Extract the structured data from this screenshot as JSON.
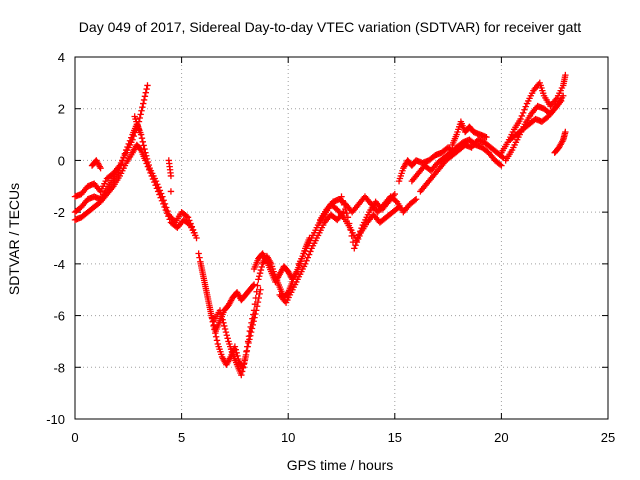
{
  "chart_data": {
    "type": "scatter",
    "title": "Day 049 of 2017, Sidereal Day-to-day VTEC variation (SDTVAR) for receiver gatt",
    "xlabel": "GPS time / hours",
    "ylabel": "SDTVAR / TECUs",
    "xlim": [
      0,
      25
    ],
    "ylim": [
      -10,
      4
    ],
    "xticks": [
      "0",
      "5",
      "10",
      "15",
      "20",
      "25"
    ],
    "yticks": [
      "4",
      "2",
      "0",
      "-2",
      "-4",
      "-6",
      "-8",
      "-10"
    ],
    "grid": true,
    "marker": "+",
    "marker_color": "#ff0000",
    "series": [
      {
        "name": "",
        "points": [
          [
            0.0,
            -1.4
          ],
          [
            0.3,
            -1.3
          ],
          [
            0.6,
            -1.0
          ],
          [
            0.9,
            -0.9
          ],
          [
            1.2,
            -1.2
          ],
          [
            1.5,
            -0.7
          ],
          [
            1.8,
            -0.5
          ],
          [
            2.1,
            -0.2
          ],
          [
            2.4,
            0.3
          ],
          [
            2.7,
            0.8
          ],
          [
            3.0,
            1.5
          ],
          [
            3.2,
            2.2
          ],
          [
            3.4,
            2.9
          ],
          [
            0.0,
            -2.0
          ],
          [
            0.3,
            -1.8
          ],
          [
            0.6,
            -1.5
          ],
          [
            0.9,
            -1.4
          ],
          [
            1.2,
            -1.5
          ],
          [
            1.5,
            -1.1
          ],
          [
            1.8,
            -0.7
          ],
          [
            2.1,
            -0.3
          ],
          [
            2.4,
            0.4
          ],
          [
            2.7,
            1.0
          ],
          [
            2.9,
            1.4
          ],
          [
            3.1,
            1.0
          ],
          [
            3.3,
            0.3
          ],
          [
            3.5,
            -0.3
          ],
          [
            3.8,
            -0.8
          ],
          [
            4.1,
            -1.4
          ],
          [
            4.4,
            -2.1
          ],
          [
            4.7,
            -2.4
          ],
          [
            5.0,
            -2.0
          ],
          [
            5.3,
            -2.2
          ],
          [
            5.6,
            -2.8
          ],
          [
            0.0,
            -2.3
          ],
          [
            0.3,
            -2.2
          ],
          [
            0.6,
            -2.0
          ],
          [
            0.9,
            -1.8
          ],
          [
            1.2,
            -1.6
          ],
          [
            1.5,
            -1.3
          ],
          [
            1.8,
            -1.0
          ],
          [
            2.1,
            -0.6
          ],
          [
            2.4,
            -0.1
          ],
          [
            2.7,
            0.3
          ],
          [
            2.9,
            0.6
          ],
          [
            3.1,
            0.4
          ],
          [
            3.3,
            0.0
          ],
          [
            3.6,
            -0.6
          ],
          [
            3.9,
            -1.2
          ],
          [
            4.2,
            -1.8
          ],
          [
            4.5,
            -2.4
          ],
          [
            4.8,
            -2.6
          ],
          [
            5.1,
            -2.3
          ],
          [
            5.4,
            -2.5
          ],
          [
            5.7,
            -3.0
          ],
          [
            0.8,
            -0.2
          ],
          [
            1.0,
            0.0
          ],
          [
            1.2,
            -0.3
          ],
          [
            2.8,
            1.7
          ],
          [
            3.0,
            1.2
          ],
          [
            4.4,
            0.0
          ],
          [
            4.5,
            -0.6
          ],
          [
            4.5,
            -1.2
          ],
          [
            5.8,
            -3.6
          ],
          [
            6.0,
            -4.4
          ],
          [
            6.2,
            -5.2
          ],
          [
            6.4,
            -6.0
          ],
          [
            6.6,
            -6.6
          ],
          [
            6.8,
            -6.2
          ],
          [
            7.0,
            -5.8
          ],
          [
            7.2,
            -5.6
          ],
          [
            7.4,
            -5.3
          ],
          [
            7.6,
            -5.1
          ],
          [
            7.8,
            -5.4
          ],
          [
            8.0,
            -5.2
          ],
          [
            8.2,
            -5.0
          ],
          [
            8.4,
            -4.8
          ],
          [
            5.9,
            -4.0
          ],
          [
            6.1,
            -4.8
          ],
          [
            6.3,
            -5.6
          ],
          [
            6.5,
            -6.4
          ],
          [
            6.7,
            -7.1
          ],
          [
            6.9,
            -7.6
          ],
          [
            7.1,
            -7.9
          ],
          [
            7.3,
            -7.6
          ],
          [
            7.5,
            -7.2
          ],
          [
            7.7,
            -7.8
          ],
          [
            7.9,
            -8.0
          ],
          [
            8.1,
            -7.2
          ],
          [
            8.3,
            -6.5
          ],
          [
            8.5,
            -5.8
          ],
          [
            8.7,
            -5.0
          ],
          [
            6.5,
            -6.2
          ],
          [
            6.8,
            -5.8
          ],
          [
            7.0,
            -6.4
          ],
          [
            7.2,
            -7.0
          ],
          [
            7.4,
            -7.5
          ],
          [
            7.6,
            -7.9
          ],
          [
            7.8,
            -8.3
          ],
          [
            8.0,
            -7.6
          ],
          [
            8.2,
            -6.6
          ],
          [
            8.4,
            -5.8
          ],
          [
            8.6,
            -4.6
          ],
          [
            8.8,
            -4.0
          ],
          [
            9.0,
            -3.7
          ],
          [
            9.2,
            -4.0
          ],
          [
            9.4,
            -4.5
          ],
          [
            9.6,
            -4.9
          ],
          [
            9.8,
            -5.3
          ],
          [
            10.0,
            -5.1
          ],
          [
            10.2,
            -4.7
          ],
          [
            8.4,
            -4.2
          ],
          [
            8.6,
            -3.8
          ],
          [
            8.8,
            -3.6
          ],
          [
            9.0,
            -3.9
          ],
          [
            9.2,
            -4.3
          ],
          [
            9.4,
            -4.7
          ],
          [
            9.6,
            -4.4
          ],
          [
            9.8,
            -4.1
          ],
          [
            10.0,
            -4.3
          ],
          [
            10.2,
            -4.6
          ],
          [
            10.4,
            -4.3
          ],
          [
            10.6,
            -3.9
          ],
          [
            10.8,
            -3.4
          ],
          [
            11.0,
            -3.0
          ],
          [
            9.6,
            -5.2
          ],
          [
            9.9,
            -5.5
          ],
          [
            10.2,
            -5.0
          ],
          [
            10.5,
            -4.5
          ],
          [
            10.8,
            -4.0
          ],
          [
            11.1,
            -3.4
          ],
          [
            11.4,
            -2.9
          ],
          [
            11.7,
            -2.4
          ],
          [
            12.0,
            -2.1
          ],
          [
            12.3,
            -2.3
          ],
          [
            12.6,
            -2.0
          ],
          [
            10.5,
            -4.0
          ],
          [
            10.8,
            -3.5
          ],
          [
            11.1,
            -3.0
          ],
          [
            11.4,
            -2.5
          ],
          [
            11.7,
            -2.1
          ],
          [
            12.0,
            -1.7
          ],
          [
            12.3,
            -1.9
          ],
          [
            12.6,
            -2.2
          ],
          [
            12.9,
            -2.6
          ],
          [
            13.2,
            -3.1
          ],
          [
            13.5,
            -2.5
          ],
          [
            13.8,
            -2.0
          ],
          [
            14.1,
            -1.6
          ],
          [
            14.4,
            -1.9
          ],
          [
            14.7,
            -1.6
          ],
          [
            15.0,
            -1.3
          ],
          [
            11.5,
            -2.3
          ],
          [
            11.8,
            -1.9
          ],
          [
            12.1,
            -1.6
          ],
          [
            12.4,
            -1.5
          ],
          [
            12.7,
            -1.7
          ],
          [
            13.0,
            -2.0
          ],
          [
            13.3,
            -1.7
          ],
          [
            13.6,
            -1.4
          ],
          [
            13.9,
            -1.7
          ],
          [
            14.2,
            -2.0
          ],
          [
            14.5,
            -1.7
          ],
          [
            14.8,
            -1.4
          ],
          [
            15.1,
            -1.6
          ],
          [
            15.4,
            -2.0
          ],
          [
            15.7,
            -1.7
          ],
          [
            16.0,
            -1.5
          ],
          [
            12.5,
            -1.4
          ],
          [
            12.8,
            -2.2
          ],
          [
            13.1,
            -3.4
          ],
          [
            13.4,
            -2.8
          ],
          [
            13.7,
            -2.4
          ],
          [
            14.0,
            -2.1
          ],
          [
            14.3,
            -2.4
          ],
          [
            14.6,
            -2.2
          ],
          [
            14.9,
            -2.0
          ],
          [
            15.2,
            -1.8
          ],
          [
            15.2,
            -0.8
          ],
          [
            15.4,
            -0.3
          ],
          [
            15.6,
            0.0
          ],
          [
            15.8,
            -0.2
          ],
          [
            16.0,
            0.0
          ],
          [
            16.3,
            -0.1
          ],
          [
            16.6,
            0.0
          ],
          [
            16.9,
            0.2
          ],
          [
            17.2,
            0.3
          ],
          [
            17.5,
            0.5
          ],
          [
            17.8,
            0.3
          ],
          [
            18.1,
            0.6
          ],
          [
            15.8,
            -0.8
          ],
          [
            16.1,
            -0.5
          ],
          [
            16.4,
            -0.2
          ],
          [
            16.7,
            -0.4
          ],
          [
            17.0,
            -0.1
          ],
          [
            17.3,
            0.1
          ],
          [
            17.6,
            0.3
          ],
          [
            17.9,
            0.5
          ],
          [
            18.2,
            0.7
          ],
          [
            18.5,
            0.8
          ],
          [
            18.8,
            0.6
          ],
          [
            19.1,
            0.5
          ],
          [
            19.4,
            0.3
          ],
          [
            19.7,
            0.0
          ],
          [
            20.0,
            -0.2
          ],
          [
            16.2,
            -1.2
          ],
          [
            16.5,
            -0.9
          ],
          [
            16.8,
            -0.6
          ],
          [
            17.1,
            -0.3
          ],
          [
            17.4,
            0.0
          ],
          [
            17.7,
            0.2
          ],
          [
            18.0,
            0.4
          ],
          [
            18.3,
            0.6
          ],
          [
            18.6,
            0.5
          ],
          [
            18.9,
            0.8
          ],
          [
            19.2,
            0.7
          ],
          [
            19.5,
            0.5
          ],
          [
            19.8,
            0.3
          ],
          [
            20.1,
            0.1
          ],
          [
            17.7,
            0.6
          ],
          [
            17.9,
            1.0
          ],
          [
            18.1,
            1.5
          ],
          [
            18.3,
            1.1
          ],
          [
            18.5,
            1.3
          ],
          [
            18.7,
            1.1
          ],
          [
            19.0,
            1.0
          ],
          [
            19.3,
            0.9
          ],
          [
            20.0,
            0.3
          ],
          [
            20.3,
            0.7
          ],
          [
            20.6,
            1.2
          ],
          [
            20.9,
            1.6
          ],
          [
            21.2,
            2.2
          ],
          [
            21.5,
            2.7
          ],
          [
            21.8,
            3.0
          ],
          [
            22.0,
            2.5
          ],
          [
            22.3,
            2.1
          ],
          [
            22.6,
            2.4
          ],
          [
            22.9,
            2.9
          ],
          [
            23.0,
            3.3
          ],
          [
            20.2,
            0.0
          ],
          [
            20.5,
            0.4
          ],
          [
            20.8,
            0.9
          ],
          [
            21.1,
            1.4
          ],
          [
            21.4,
            1.8
          ],
          [
            21.7,
            2.1
          ],
          [
            22.0,
            2.0
          ],
          [
            22.3,
            1.8
          ],
          [
            22.6,
            2.1
          ],
          [
            22.9,
            2.5
          ],
          [
            20.4,
            0.8
          ],
          [
            20.7,
            1.0
          ],
          [
            21.0,
            1.2
          ],
          [
            21.3,
            1.4
          ],
          [
            21.6,
            1.6
          ],
          [
            21.9,
            1.5
          ],
          [
            22.2,
            1.7
          ],
          [
            22.5,
            2.0
          ],
          [
            22.8,
            2.3
          ],
          [
            22.5,
            0.3
          ],
          [
            22.7,
            0.5
          ],
          [
            22.9,
            0.8
          ],
          [
            23.0,
            1.1
          ]
        ]
      }
    ]
  }
}
